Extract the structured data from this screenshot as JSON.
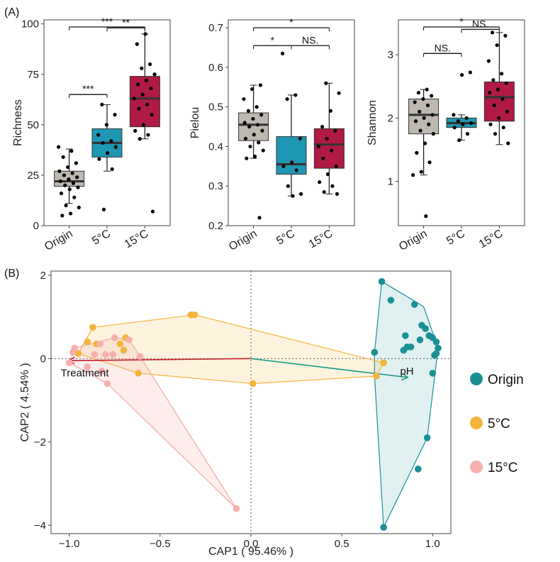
{
  "panel_labels": {
    "a": "(A)",
    "b": "(B)"
  },
  "colors": {
    "origin_box": "#bdb9b1",
    "c5_box": "#1e97b4",
    "c15_box": "#b01a45",
    "origin_pt": "#1a9095",
    "c5_pt": "#f2b53a",
    "c15_pt": "#f6b1af",
    "treatment_arrow": "#c41f2a",
    "ph_arrow": "#1a9a85"
  },
  "chart_data": [
    {
      "type": "box",
      "ylabel": "Richness",
      "categories": [
        "Origin",
        "5°C",
        "15°C"
      ],
      "ylim": [
        0,
        102
      ],
      "yticks": [
        "0",
        "25",
        "50",
        "75",
        "100"
      ],
      "boxes": [
        {
          "group": "Origin",
          "q1": 19.5,
          "median": 22,
          "q3": 27,
          "whisker_low": 11,
          "whisker_high": 38,
          "points": [
            39,
            37,
            34,
            31,
            29,
            27,
            26,
            25,
            24,
            23,
            22,
            21,
            20,
            19,
            18,
            16,
            14,
            10,
            9,
            6,
            5
          ]
        },
        {
          "group": "5°C",
          "q1": 34,
          "median": 41,
          "q3": 48,
          "whisker_low": 27,
          "whisker_high": 60,
          "points": [
            60,
            55,
            50,
            45,
            42,
            41,
            39,
            36,
            33,
            28,
            8
          ]
        },
        {
          "group": "15°C",
          "q1": 49,
          "median": 63,
          "q3": 74,
          "whisker_low": 43,
          "whisker_high": 95,
          "points": [
            95,
            90,
            80,
            78,
            75,
            72,
            70,
            68,
            65,
            63,
            60,
            58,
            55,
            50,
            47,
            45,
            43,
            7
          ]
        }
      ],
      "significance": [
        {
          "from": 0,
          "to": 2,
          "label": "***",
          "y": 104
        },
        {
          "from": 1,
          "to": 2,
          "label": "**",
          "y": 98
        },
        {
          "from": 0,
          "to": 1,
          "label": "***",
          "y": 65
        }
      ]
    },
    {
      "type": "box",
      "ylabel": "Pielou",
      "categories": [
        "Origin",
        "5°C",
        "15°C"
      ],
      "ylim": [
        0.2,
        0.72
      ],
      "yticks": [
        "0.2",
        "0.3",
        "0.4",
        "0.5",
        "0.6",
        "0.7"
      ],
      "boxes": [
        {
          "group": "Origin",
          "q1": 0.415,
          "median": 0.455,
          "q3": 0.485,
          "whisker_low": 0.37,
          "whisker_high": 0.555,
          "points": [
            0.555,
            0.545,
            0.52,
            0.5,
            0.49,
            0.48,
            0.47,
            0.46,
            0.455,
            0.45,
            0.44,
            0.43,
            0.42,
            0.41,
            0.4,
            0.39,
            0.375,
            0.37,
            0.22
          ]
        },
        {
          "group": "5°C",
          "q1": 0.33,
          "median": 0.355,
          "q3": 0.425,
          "whisker_low": 0.275,
          "whisker_high": 0.53,
          "points": [
            0.635,
            0.53,
            0.52,
            0.42,
            0.36,
            0.35,
            0.34,
            0.3,
            0.28,
            0.275
          ]
        },
        {
          "group": "15°C",
          "q1": 0.345,
          "median": 0.405,
          "q3": 0.445,
          "whisker_low": 0.28,
          "whisker_high": 0.56,
          "points": [
            0.56,
            0.535,
            0.49,
            0.45,
            0.44,
            0.42,
            0.4,
            0.39,
            0.37,
            0.35,
            0.33,
            0.31,
            0.3,
            0.285,
            0.28
          ]
        }
      ],
      "significance": [
        {
          "from": 0,
          "to": 2,
          "label": "*",
          "y": 0.7
        },
        {
          "from": 0,
          "to": 1,
          "label": "*",
          "y": 0.655
        },
        {
          "from": 1,
          "to": 2,
          "label": "NS.",
          "y": 0.655
        }
      ]
    },
    {
      "type": "box",
      "ylabel": "Shannon",
      "categories": [
        "Origin",
        "5°C",
        "15°C"
      ],
      "ylim": [
        0.3,
        3.55
      ],
      "yticks": [
        "1",
        "2",
        "3"
      ],
      "boxes": [
        {
          "group": "Origin",
          "q1": 1.75,
          "median": 2.05,
          "q3": 2.3,
          "whisker_low": 1.1,
          "whisker_high": 2.45,
          "points": [
            2.45,
            2.4,
            2.35,
            2.3,
            2.25,
            2.2,
            2.1,
            2.05,
            2.0,
            1.95,
            1.9,
            1.8,
            1.75,
            1.6,
            1.45,
            1.3,
            1.15,
            1.1,
            0.45
          ]
        },
        {
          "group": "5°C",
          "q1": 1.85,
          "median": 1.92,
          "q3": 2.0,
          "whisker_low": 1.65,
          "whisker_high": 2.05,
          "points": [
            2.72,
            2.68,
            2.05,
            2.0,
            1.95,
            1.92,
            1.9,
            1.85,
            1.75,
            1.65
          ]
        },
        {
          "group": "15°C",
          "q1": 1.95,
          "median": 2.33,
          "q3": 2.57,
          "whisker_low": 1.58,
          "whisker_high": 3.35,
          "points": [
            3.35,
            3.3,
            3.15,
            2.9,
            2.7,
            2.6,
            2.55,
            2.45,
            2.4,
            2.3,
            2.2,
            2.1,
            2.0,
            1.9,
            1.85,
            1.75,
            1.6
          ]
        }
      ],
      "significance": [
        {
          "from": 0,
          "to": 2,
          "label": "*",
          "y": 3.65
        },
        {
          "from": 1,
          "to": 2,
          "label": "NS.",
          "y": 3.4
        },
        {
          "from": 0,
          "to": 1,
          "label": "NS.",
          "y": 3.02
        }
      ]
    },
    {
      "type": "scatter",
      "xlabel": "CAP1 ( 95.46% )",
      "ylabel": "CAP2 ( 4.54% )",
      "xlim": [
        -1.1,
        1.1
      ],
      "ylim": [
        -4.2,
        2.1
      ],
      "xticks": [
        {
          "value": -1.0,
          "label": "−1.0"
        },
        {
          "value": -0.5,
          "label": "−0.5"
        },
        {
          "value": 0.0,
          "label": "0.0"
        },
        {
          "value": 0.5,
          "label": "0.5"
        },
        {
          "value": 1.0,
          "label": "1.0"
        }
      ],
      "yticks": [
        {
          "value": 2,
          "label": "2"
        },
        {
          "value": 0,
          "label": "0"
        },
        {
          "value": -2,
          "label": "−2"
        },
        {
          "value": -4,
          "label": "−4"
        }
      ],
      "series": [
        {
          "name": "Origin",
          "points": [
            [
              0.72,
              1.85
            ],
            [
              0.77,
              1.4
            ],
            [
              0.9,
              1.3
            ],
            [
              0.94,
              0.8
            ],
            [
              0.96,
              0.72
            ],
            [
              0.98,
              0.55
            ],
            [
              0.85,
              0.55
            ],
            [
              0.93,
              0.45
            ],
            [
              1.0,
              0.5
            ],
            [
              1.02,
              0.4
            ],
            [
              0.88,
              0.28
            ],
            [
              0.84,
              0.2
            ],
            [
              0.86,
              0.28
            ],
            [
              1.03,
              0.25
            ],
            [
              1.02,
              0.12
            ],
            [
              1.01,
              0.08
            ],
            [
              0.68,
              0.15
            ],
            [
              1.0,
              -0.35
            ],
            [
              0.97,
              -1.9
            ],
            [
              0.92,
              -2.65
            ],
            [
              0.73,
              -4.05
            ]
          ],
          "hull": [
            [
              0.72,
              1.85
            ],
            [
              0.95,
              1.25
            ],
            [
              1.03,
              0.25
            ],
            [
              0.97,
              -1.9
            ],
            [
              0.73,
              -4.05
            ],
            [
              0.68,
              -0.4
            ],
            [
              0.68,
              0.15
            ]
          ]
        },
        {
          "name": "5°C",
          "points": [
            [
              -0.31,
              1.05
            ],
            [
              -0.33,
              1.05
            ],
            [
              -0.87,
              0.75
            ],
            [
              -0.85,
              0.35
            ],
            [
              -0.9,
              0.4
            ],
            [
              -0.69,
              0.5
            ],
            [
              -0.72,
              0.35
            ],
            [
              -0.7,
              0.2
            ],
            [
              -0.62,
              -0.35
            ],
            [
              -0.95,
              0.12
            ],
            [
              0.01,
              -0.6
            ],
            [
              0.73,
              -0.1
            ],
            [
              0.69,
              -0.42
            ]
          ],
          "hull": [
            [
              -0.31,
              1.05
            ],
            [
              0.73,
              -0.1
            ],
            [
              0.69,
              -0.42
            ],
            [
              0.01,
              -0.6
            ],
            [
              -0.62,
              -0.35
            ],
            [
              -0.95,
              0.12
            ],
            [
              -0.87,
              0.75
            ]
          ]
        },
        {
          "name": "15°C",
          "points": [
            [
              -0.75,
              0.5
            ],
            [
              -0.67,
              0.45
            ],
            [
              -0.83,
              0.35
            ],
            [
              -0.8,
              0.1
            ],
            [
              -0.76,
              0.1
            ],
            [
              -0.86,
              0.1
            ],
            [
              -0.98,
              0.15
            ],
            [
              -0.97,
              0.25
            ],
            [
              -1.0,
              -0.1
            ],
            [
              -0.9,
              -0.2
            ],
            [
              -0.82,
              -0.3
            ],
            [
              -0.79,
              -0.6
            ],
            [
              -0.61,
              0.05
            ],
            [
              -0.08,
              -3.6
            ]
          ],
          "hull": [
            [
              -0.97,
              0.25
            ],
            [
              -0.75,
              0.5
            ],
            [
              -0.67,
              0.45
            ],
            [
              -0.61,
              0.05
            ],
            [
              -0.08,
              -3.6
            ],
            [
              -0.79,
              -0.6
            ],
            [
              -1.0,
              -0.1
            ]
          ]
        }
      ],
      "arrows": [
        {
          "label": "Treatment",
          "x": -1.0,
          "y": -0.05
        },
        {
          "label": "pH",
          "x": 0.86,
          "y": -0.45
        }
      ],
      "legend": [
        "Origin",
        "5°C",
        "15°C"
      ],
      "legend_position": "right"
    }
  ]
}
